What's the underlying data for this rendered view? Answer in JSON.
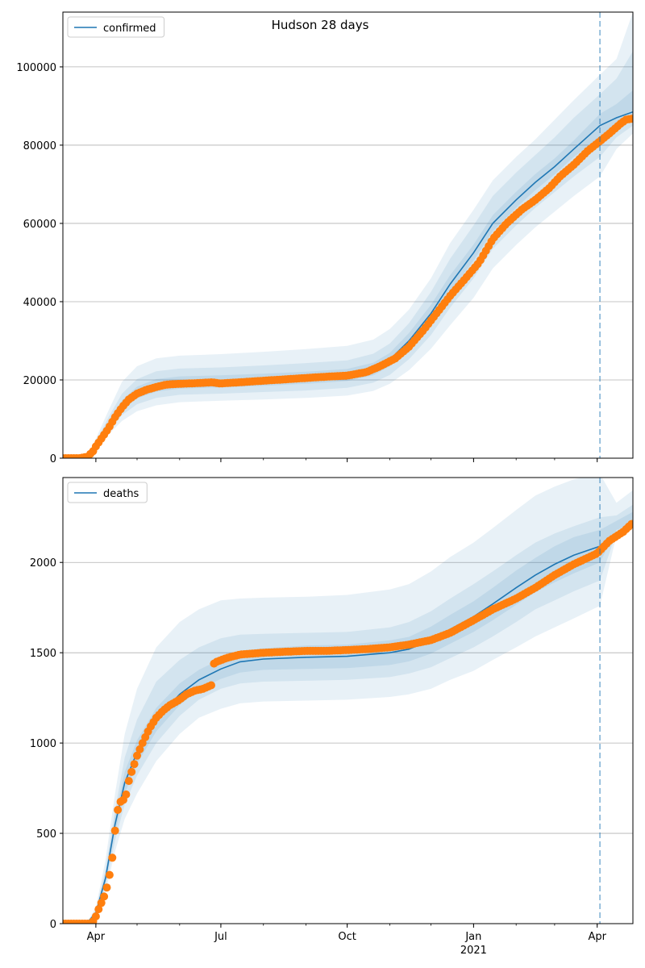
{
  "title": "Hudson 28 days",
  "colors": {
    "model": "#1f77b4",
    "observed": "#ff7f0e",
    "band": "#1f77b4",
    "grid": "#b0b0b0"
  },
  "x_ticks": [
    {
      "date": "2020-04-01",
      "label": "Apr",
      "sub": ""
    },
    {
      "date": "2020-07-01",
      "label": "Jul",
      "sub": ""
    },
    {
      "date": "2020-10-01",
      "label": "Oct",
      "sub": ""
    },
    {
      "date": "2021-01-01",
      "label": "Jan",
      "sub": "2021"
    },
    {
      "date": "2021-04-01",
      "label": "Apr",
      "sub": ""
    }
  ],
  "chart_data": [
    {
      "type": "line",
      "legend": "confirmed",
      "legend_position": "top-left",
      "grid": "y",
      "xlim": [
        "2020-03-08",
        "2021-04-27"
      ],
      "ylim": [
        0,
        114000
      ],
      "y_ticks": [
        0,
        20000,
        40000,
        60000,
        80000,
        100000
      ],
      "forecast_start": "2021-04-03",
      "model": {
        "x": [
          "2020-03-08",
          "2020-03-20",
          "2020-03-26",
          "2020-04-01",
          "2020-04-10",
          "2020-04-20",
          "2020-05-01",
          "2020-05-15",
          "2020-06-01",
          "2020-07-01",
          "2020-08-01",
          "2020-09-01",
          "2020-10-01",
          "2020-10-20",
          "2020-11-01",
          "2020-11-15",
          "2020-12-01",
          "2020-12-15",
          "2021-01-01",
          "2021-01-15",
          "2021-02-01",
          "2021-02-15",
          "2021-03-01",
          "2021-03-15",
          "2021-04-03",
          "2021-04-15",
          "2021-04-27"
        ],
        "y": [
          0,
          0,
          300,
          3500,
          8500,
          13500,
          16800,
          18600,
          19300,
          19600,
          20000,
          20500,
          21200,
          22800,
          25200,
          30000,
          37000,
          44500,
          52500,
          60000,
          66000,
          70500,
          74500,
          79000,
          85000,
          87000,
          88500
        ]
      },
      "bands": [
        {
          "x": [
            "2020-03-08",
            "2020-03-20",
            "2020-03-26",
            "2020-04-01",
            "2020-04-10",
            "2020-04-20",
            "2020-05-01",
            "2020-05-15",
            "2020-06-01",
            "2020-07-01",
            "2020-08-01",
            "2020-09-01",
            "2020-10-01",
            "2020-10-20",
            "2020-11-01",
            "2020-11-15",
            "2020-12-01",
            "2020-12-15",
            "2021-01-01",
            "2021-01-15",
            "2021-02-01",
            "2021-02-15",
            "2021-03-01",
            "2021-03-15",
            "2021-04-03",
            "2021-04-15",
            "2021-04-27"
          ],
          "lower": [
            0,
            0,
            200,
            2600,
            6000,
            9500,
            12000,
            13500,
            14300,
            14700,
            15000,
            15400,
            16000,
            17200,
            19000,
            22500,
            28000,
            34000,
            41000,
            48500,
            54500,
            59000,
            63000,
            67000,
            72000,
            79000,
            83000
          ],
          "upper": [
            0,
            0,
            450,
            5000,
            12000,
            19500,
            23500,
            25500,
            26200,
            26600,
            27200,
            27900,
            28700,
            30300,
            33000,
            38000,
            46000,
            55000,
            63500,
            71000,
            77000,
            81500,
            86500,
            91500,
            98000,
            102000,
            114000
          ]
        },
        {
          "x": [
            "2020-03-08",
            "2020-03-20",
            "2020-03-26",
            "2020-04-01",
            "2020-04-10",
            "2020-04-20",
            "2020-05-01",
            "2020-05-15",
            "2020-06-01",
            "2020-07-01",
            "2020-08-01",
            "2020-09-01",
            "2020-10-01",
            "2020-10-20",
            "2020-11-01",
            "2020-11-15",
            "2020-12-01",
            "2020-12-15",
            "2021-01-01",
            "2021-01-15",
            "2021-02-01",
            "2021-02-15",
            "2021-03-01",
            "2021-03-15",
            "2021-04-03",
            "2021-04-15",
            "2021-04-27"
          ],
          "lower": [
            0,
            0,
            240,
            2900,
            7000,
            11000,
            13800,
            15400,
            16200,
            16500,
            16900,
            17300,
            18000,
            19300,
            21300,
            25300,
            31500,
            38500,
            46000,
            53500,
            59500,
            64000,
            68000,
            72000,
            77000,
            82000,
            85000
          ],
          "upper": [
            0,
            0,
            380,
            4300,
            10300,
            16500,
            20200,
            22200,
            22900,
            23200,
            23700,
            24300,
            25000,
            26700,
            29300,
            34500,
            42500,
            51000,
            59500,
            67000,
            73000,
            77500,
            82000,
            87000,
            93000,
            97000,
            104000
          ]
        },
        {
          "x": [
            "2020-03-08",
            "2020-03-20",
            "2020-03-26",
            "2020-04-01",
            "2020-04-10",
            "2020-04-20",
            "2020-05-01",
            "2020-05-15",
            "2020-06-01",
            "2020-07-01",
            "2020-08-01",
            "2020-09-01",
            "2020-10-01",
            "2020-10-20",
            "2020-11-01",
            "2020-11-15",
            "2020-12-01",
            "2020-12-15",
            "2021-01-01",
            "2021-01-15",
            "2021-02-01",
            "2021-02-15",
            "2021-03-01",
            "2021-03-15",
            "2021-04-03",
            "2021-04-15",
            "2021-04-27"
          ],
          "lower": [
            0,
            0,
            270,
            3200,
            7800,
            12300,
            15300,
            17000,
            17800,
            18100,
            18500,
            19000,
            19700,
            21200,
            23500,
            28000,
            35000,
            42500,
            50500,
            58000,
            64000,
            68500,
            72500,
            77000,
            82000,
            84500,
            87000
          ],
          "upper": [
            0,
            0,
            330,
            3800,
            9300,
            14800,
            18300,
            20200,
            20900,
            21200,
            21600,
            22100,
            22800,
            24400,
            26900,
            32000,
            39200,
            46800,
            54600,
            62100,
            68100,
            72600,
            76600,
            81200,
            88000,
            90500,
            94000
          ]
        }
      ],
      "observed": {
        "x": [
          "2020-03-08",
          "2020-03-20",
          "2020-03-26",
          "2020-03-30",
          "2020-04-01",
          "2020-04-05",
          "2020-04-10",
          "2020-04-15",
          "2020-04-20",
          "2020-04-25",
          "2020-05-01",
          "2020-05-08",
          "2020-05-15",
          "2020-05-22",
          "2020-06-01",
          "2020-06-15",
          "2020-06-25",
          "2020-06-30",
          "2020-07-15",
          "2020-08-01",
          "2020-08-15",
          "2020-09-01",
          "2020-09-15",
          "2020-10-01",
          "2020-10-15",
          "2020-10-25",
          "2020-11-05",
          "2020-11-15",
          "2020-11-25",
          "2020-12-05",
          "2020-12-15",
          "2020-12-25",
          "2021-01-05",
          "2021-01-15",
          "2021-01-25",
          "2021-02-05",
          "2021-02-15",
          "2021-02-25",
          "2021-03-05",
          "2021-03-15",
          "2021-03-25",
          "2021-04-03",
          "2021-04-10",
          "2021-04-18",
          "2021-04-22",
          "2021-04-27"
        ],
        "y": [
          0,
          0,
          400,
          1800,
          3000,
          5000,
          7500,
          10500,
          13000,
          15000,
          16500,
          17500,
          18200,
          18800,
          19000,
          19200,
          19400,
          19100,
          19400,
          19800,
          20100,
          20500,
          20800,
          21100,
          22000,
          23500,
          25500,
          28500,
          32500,
          37000,
          41500,
          45500,
          50000,
          56000,
          60000,
          63500,
          66000,
          69000,
          72000,
          75000,
          78500,
          81000,
          83000,
          85500,
          86500,
          86800
        ]
      }
    },
    {
      "type": "line",
      "legend": "deaths",
      "legend_position": "top-left",
      "grid": "y",
      "xlim": [
        "2020-03-08",
        "2021-04-27"
      ],
      "ylim": [
        0,
        2470
      ],
      "y_ticks": [
        0,
        500,
        1000,
        1500,
        2000
      ],
      "forecast_start": "2021-04-03",
      "model": {
        "x": [
          "2020-03-08",
          "2020-03-25",
          "2020-04-01",
          "2020-04-08",
          "2020-04-15",
          "2020-04-22",
          "2020-05-01",
          "2020-05-15",
          "2020-06-01",
          "2020-06-15",
          "2020-07-01",
          "2020-07-15",
          "2020-08-01",
          "2020-09-01",
          "2020-10-01",
          "2020-11-01",
          "2020-11-15",
          "2020-12-01",
          "2020-12-15",
          "2021-01-01",
          "2021-01-15",
          "2021-02-01",
          "2021-02-15",
          "2021-03-01",
          "2021-03-15",
          "2021-04-03",
          "2021-04-15",
          "2021-04-27"
        ],
        "y": [
          0,
          0,
          60,
          250,
          550,
          780,
          950,
          1130,
          1270,
          1350,
          1410,
          1450,
          1465,
          1475,
          1480,
          1500,
          1520,
          1570,
          1630,
          1700,
          1770,
          1860,
          1930,
          1990,
          2040,
          2090,
          2150,
          2220
        ]
      },
      "bands": [
        {
          "x": [
            "2020-03-08",
            "2020-03-25",
            "2020-04-01",
            "2020-04-08",
            "2020-04-15",
            "2020-04-22",
            "2020-05-01",
            "2020-05-15",
            "2020-06-01",
            "2020-06-15",
            "2020-07-01",
            "2020-07-15",
            "2020-08-01",
            "2020-09-01",
            "2020-10-01",
            "2020-11-01",
            "2020-11-15",
            "2020-12-01",
            "2020-12-15",
            "2021-01-01",
            "2021-01-15",
            "2021-02-01",
            "2021-02-15",
            "2021-03-01",
            "2021-03-15",
            "2021-04-03",
            "2021-04-15",
            "2021-04-27"
          ],
          "lower": [
            0,
            0,
            30,
            170,
            400,
            580,
            720,
            900,
            1050,
            1140,
            1190,
            1220,
            1230,
            1235,
            1240,
            1255,
            1270,
            1300,
            1350,
            1400,
            1460,
            1530,
            1590,
            1640,
            1690,
            1760,
            2150,
            2190
          ],
          "upper": [
            0,
            0,
            90,
            350,
            720,
            1050,
            1300,
            1530,
            1670,
            1740,
            1790,
            1800,
            1805,
            1810,
            1820,
            1850,
            1880,
            1950,
            2030,
            2110,
            2190,
            2290,
            2370,
            2420,
            2460,
            2490,
            2330,
            2400
          ]
        },
        {
          "x": [
            "2020-03-08",
            "2020-03-25",
            "2020-04-01",
            "2020-04-08",
            "2020-04-15",
            "2020-04-22",
            "2020-05-01",
            "2020-05-15",
            "2020-06-01",
            "2020-06-15",
            "2020-07-01",
            "2020-07-15",
            "2020-08-01",
            "2020-09-01",
            "2020-10-01",
            "2020-11-01",
            "2020-11-15",
            "2020-12-01",
            "2020-12-15",
            "2021-01-01",
            "2021-01-15",
            "2021-02-01",
            "2021-02-15",
            "2021-03-01",
            "2021-03-15",
            "2021-04-03",
            "2021-04-15",
            "2021-04-27"
          ],
          "lower": [
            0,
            0,
            40,
            200,
            460,
            660,
            820,
            1000,
            1150,
            1240,
            1300,
            1330,
            1340,
            1345,
            1350,
            1365,
            1385,
            1420,
            1470,
            1530,
            1590,
            1670,
            1740,
            1790,
            1840,
            1900,
            2165,
            2205
          ],
          "upper": [
            0,
            0,
            75,
            300,
            630,
            920,
            1130,
            1340,
            1460,
            1530,
            1580,
            1600,
            1605,
            1610,
            1615,
            1640,
            1670,
            1730,
            1800,
            1880,
            1950,
            2040,
            2110,
            2160,
            2200,
            2250,
            2260,
            2320
          ]
        },
        {
          "x": [
            "2020-03-08",
            "2020-03-25",
            "2020-04-01",
            "2020-04-08",
            "2020-04-15",
            "2020-04-22",
            "2020-05-01",
            "2020-05-15",
            "2020-06-01",
            "2020-06-15",
            "2020-07-01",
            "2020-07-15",
            "2020-08-01",
            "2020-09-01",
            "2020-10-01",
            "2020-11-01",
            "2020-11-15",
            "2020-12-01",
            "2020-12-15",
            "2021-01-01",
            "2021-01-15",
            "2021-02-01",
            "2021-02-15",
            "2021-03-01",
            "2021-03-15",
            "2021-04-03",
            "2021-04-15",
            "2021-04-27"
          ],
          "lower": [
            0,
            0,
            50,
            225,
            505,
            720,
            885,
            1065,
            1210,
            1295,
            1355,
            1390,
            1405,
            1410,
            1415,
            1432,
            1452,
            1495,
            1550,
            1615,
            1680,
            1765,
            1835,
            1890,
            1940,
            2000,
            2180,
            2215
          ],
          "upper": [
            0,
            0,
            68,
            275,
            595,
            840,
            1015,
            1195,
            1330,
            1405,
            1465,
            1510,
            1525,
            1540,
            1545,
            1568,
            1588,
            1645,
            1710,
            1785,
            1860,
            1955,
            2025,
            2090,
            2140,
            2180,
            2230,
            2280
          ]
        }
      ],
      "observed": {
        "x": [
          "2020-03-08",
          "2020-03-20",
          "2020-03-28",
          "2020-03-31",
          "2020-04-02",
          "2020-04-04",
          "2020-04-06",
          "2020-04-08",
          "2020-04-10",
          "2020-04-12",
          "2020-04-14",
          "2020-04-16",
          "2020-04-18",
          "2020-04-20",
          "2020-04-22",
          "2020-04-24",
          "2020-04-26",
          "2020-04-28",
          "2020-05-01",
          "2020-05-05",
          "2020-05-10",
          "2020-05-15",
          "2020-05-20",
          "2020-05-25",
          "2020-06-01",
          "2020-06-06",
          "2020-06-12",
          "2020-06-18",
          "2020-06-24",
          "2020-06-26",
          "2020-06-28",
          "2020-07-05",
          "2020-07-15",
          "2020-08-01",
          "2020-08-15",
          "2020-09-01",
          "2020-09-15",
          "2020-10-01",
          "2020-10-15",
          "2020-11-01",
          "2020-11-15",
          "2020-12-01",
          "2020-12-15",
          "2021-01-01",
          "2021-01-15",
          "2021-02-01",
          "2021-02-15",
          "2021-03-01",
          "2021-03-15",
          "2021-04-01",
          "2021-04-10",
          "2021-04-20",
          "2021-04-27"
        ],
        "y": [
          0,
          0,
          0,
          20,
          60,
          100,
          130,
          170,
          230,
          310,
          420,
          610,
          650,
          700,
          670,
          760,
          820,
          860,
          930,
          1000,
          1080,
          1140,
          1180,
          1210,
          1240,
          1270,
          1290,
          1300,
          1320,
          1440,
          1450,
          1470,
          1490,
          1500,
          1505,
          1510,
          1510,
          1515,
          1520,
          1530,
          1545,
          1570,
          1610,
          1680,
          1740,
          1800,
          1860,
          1930,
          1990,
          2050,
          2120,
          2170,
          2220
        ]
      }
    }
  ]
}
